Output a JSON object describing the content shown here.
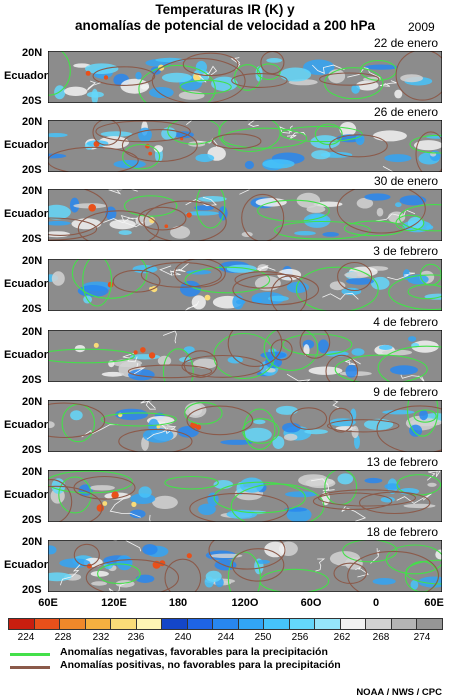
{
  "title": {
    "line1": "Temperaturas IR (K) y",
    "line2": "anomalías de potencial de velocidad a 200 hPa"
  },
  "year": "2009",
  "lat_labels": {
    "north": "20N",
    "equator": "Ecuador",
    "south": "20S"
  },
  "panels": [
    {
      "date": "22 de enero"
    },
    {
      "date": "26 de enero"
    },
    {
      "date": "30 de enero"
    },
    {
      "date": "3 de febrero"
    },
    {
      "date": "4 de febrero"
    },
    {
      "date": "9 de febrero"
    },
    {
      "date": "13 de febrero"
    },
    {
      "date": "18 de febrero"
    }
  ],
  "lon_labels": [
    "60E",
    "120E",
    "180",
    "120O",
    "60O",
    "0",
    "60E"
  ],
  "colorbar": {
    "colors": [
      "#c81e0f",
      "#e8501a",
      "#f0882a",
      "#f5b040",
      "#fadc78",
      "#fff5b4",
      "#1446c8",
      "#1e64e6",
      "#2887f0",
      "#32a5f5",
      "#46c3fa",
      "#64d7fa",
      "#96e6fa",
      "#f2f2f2",
      "#d2d2d2",
      "#b4b4b4",
      "#969696"
    ],
    "labels": [
      "224",
      "228",
      "232",
      "236",
      "240",
      "244",
      "250",
      "256",
      "262",
      "268",
      "274"
    ]
  },
  "legend": {
    "negative": {
      "text": "Anomalías negativas, favorables para la precipitación",
      "color": "#44e04a"
    },
    "positive": {
      "text": "Anomalías positivas, no favorables para la precipitación",
      "color": "#8b5a4a"
    }
  },
  "credit": "NOAA / NWS / CPC"
}
